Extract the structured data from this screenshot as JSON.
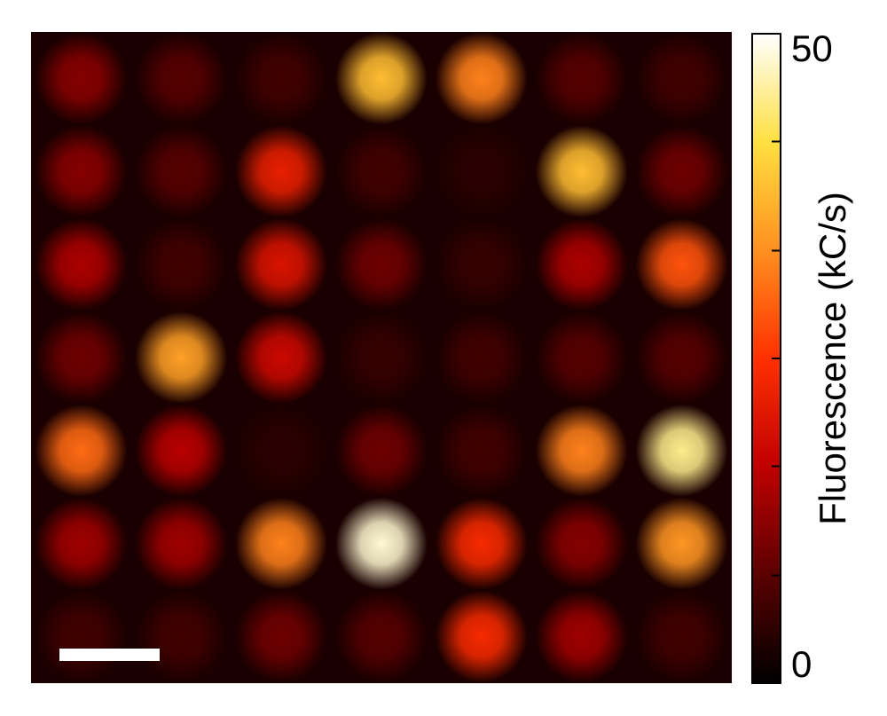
{
  "chart_data": {
    "type": "heatmap",
    "z": [
      [
        12,
        8,
        6,
        38,
        32,
        8,
        6
      ],
      [
        12,
        8,
        22,
        6,
        4,
        38,
        10
      ],
      [
        15,
        6,
        20,
        10,
        5,
        15,
        28
      ],
      [
        10,
        35,
        18,
        5,
        6,
        8,
        8
      ],
      [
        30,
        16,
        4,
        10,
        6,
        32,
        45
      ],
      [
        14,
        14,
        32,
        48,
        24,
        12,
        34
      ],
      [
        6,
        6,
        10,
        8,
        24,
        14,
        6
      ]
    ],
    "clim": [
      0,
      50
    ],
    "cticks": [
      0,
      50
    ],
    "cminor_ticks": [
      8.3,
      16.7,
      25,
      33.3,
      41.7
    ],
    "colorbar_label": "Fluorescence (kC/s)",
    "colormap": [
      "#000000",
      "#5a0000",
      "#c00000",
      "#ff3000",
      "#ff9020",
      "#ffe040",
      "#ffffff"
    ]
  }
}
